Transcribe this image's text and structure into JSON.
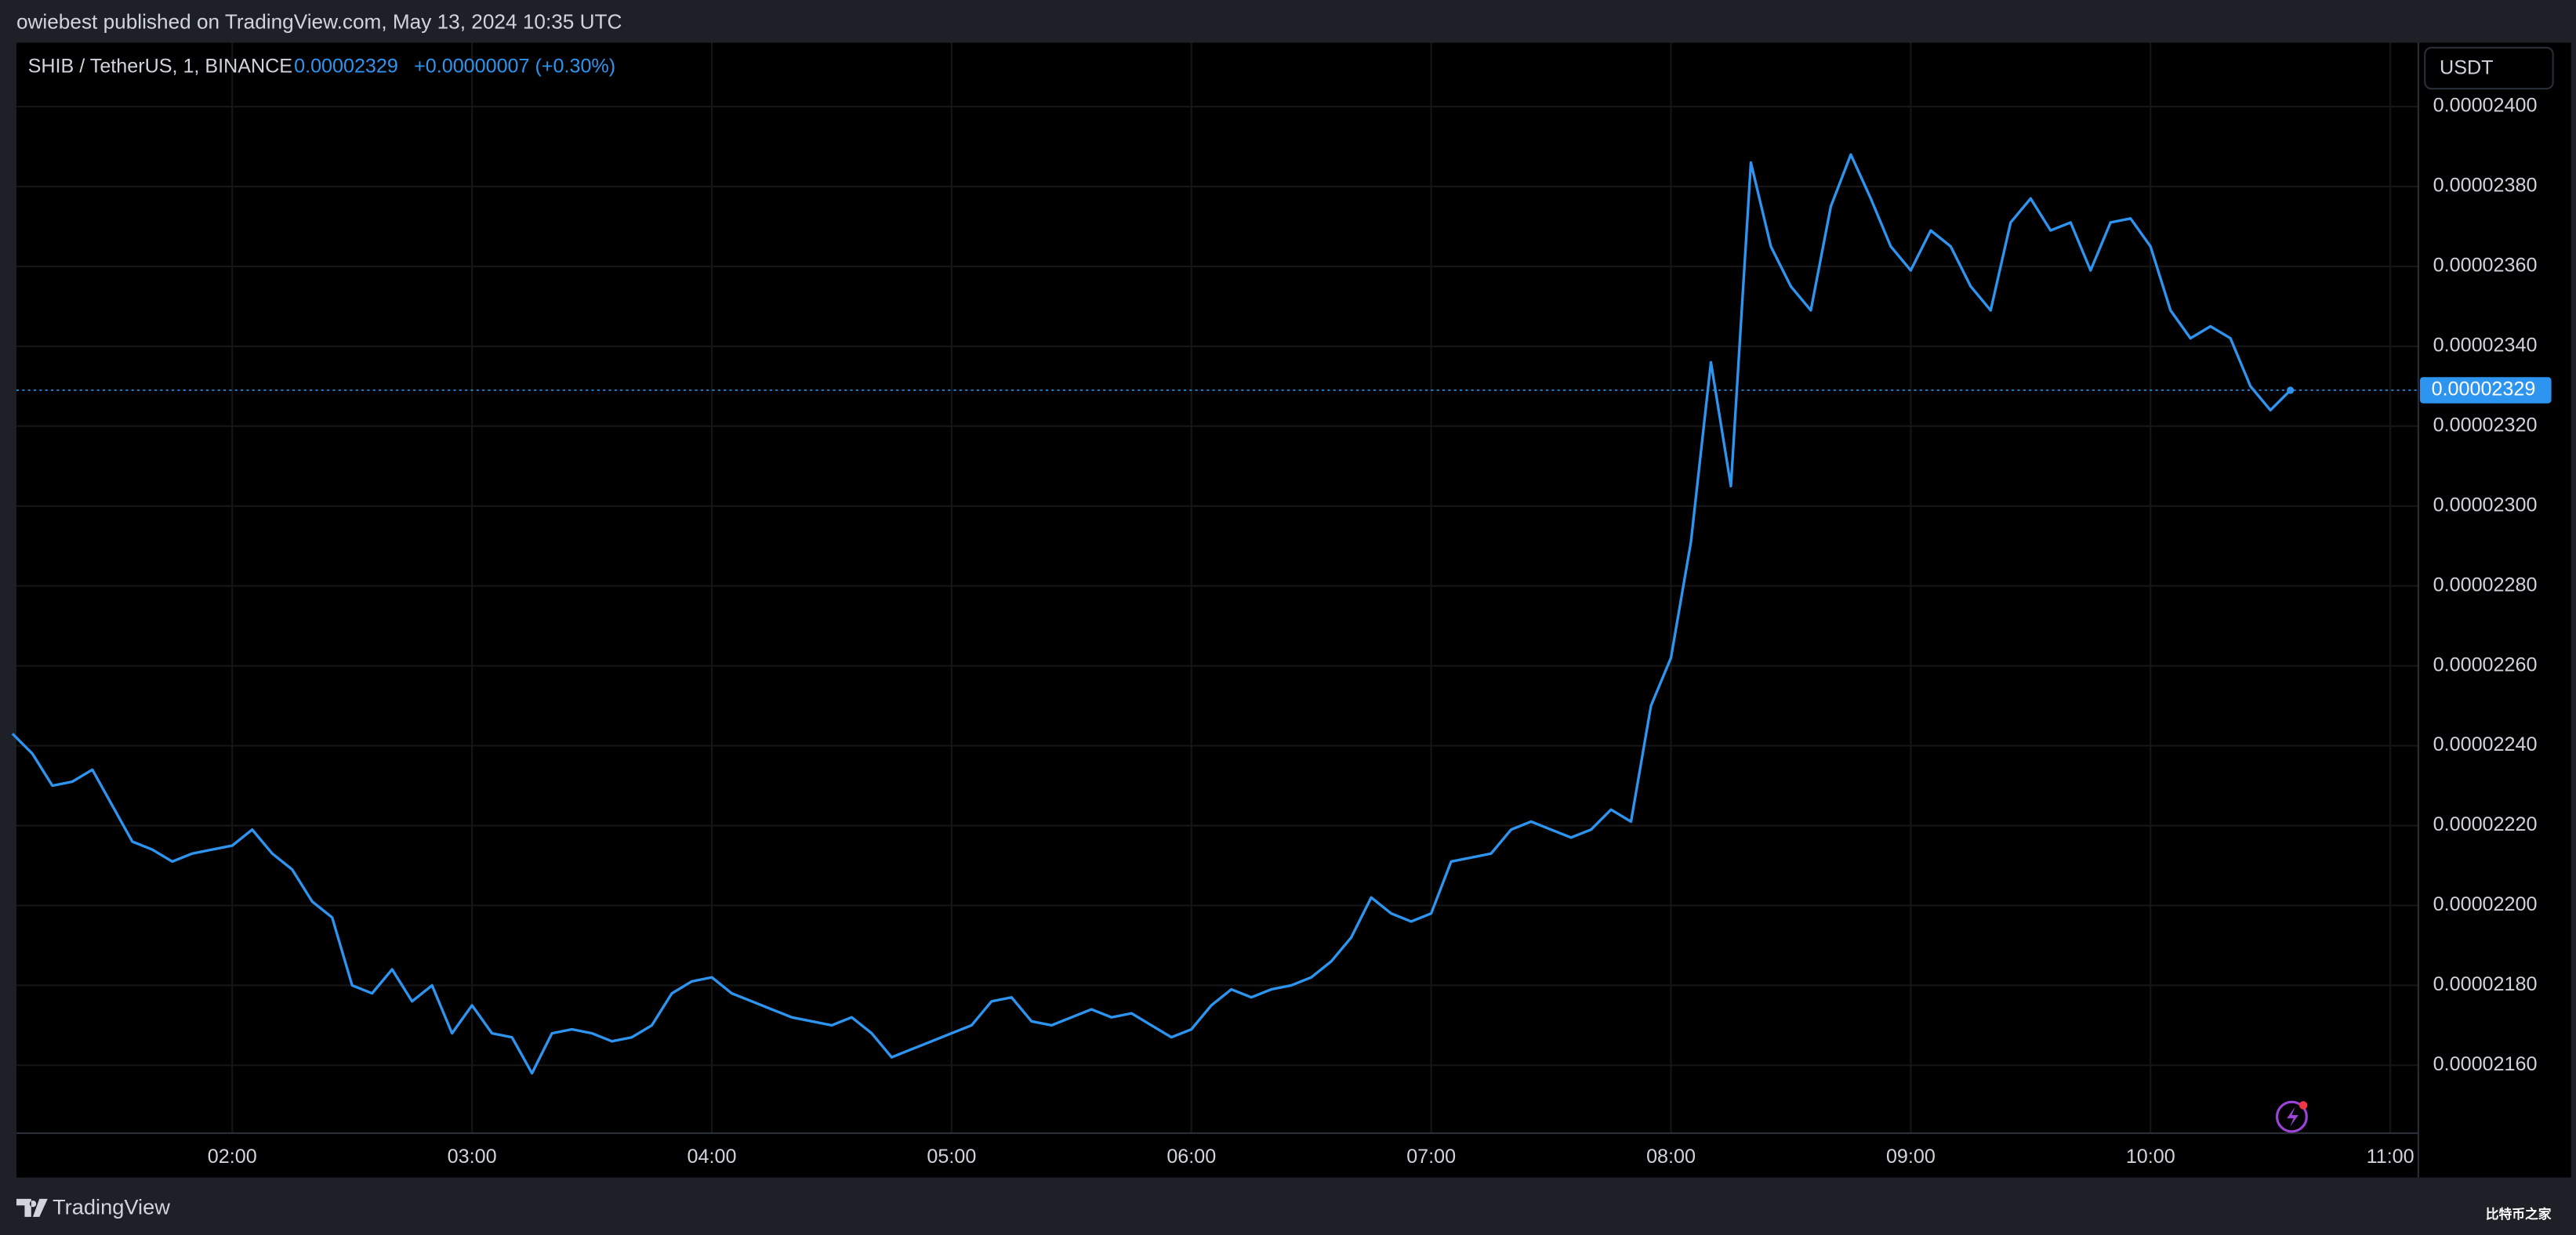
{
  "header": {
    "publisher": "owiebest published on TradingView.com, May 13, 2024 10:35 UTC"
  },
  "footer": {
    "brand": "TradingView",
    "watermark": "比特币之家"
  },
  "chart_data": {
    "type": "line",
    "symbol": "SHIB / TetherUS, 1, BINANCE",
    "last_price": 2.329e-05,
    "change": "+0.00000007 (+0.30%)",
    "currency": "USDT",
    "color": "#2d94f0",
    "x": [
      "01:05",
      "01:10",
      "01:15",
      "01:20",
      "01:25",
      "01:30",
      "01:35",
      "01:40",
      "01:45",
      "01:50",
      "01:55",
      "02:00",
      "02:05",
      "02:10",
      "02:15",
      "02:20",
      "02:25",
      "02:30",
      "02:35",
      "02:40",
      "02:45",
      "02:50",
      "02:55",
      "03:00",
      "03:05",
      "03:10",
      "03:15",
      "03:20",
      "03:25",
      "03:30",
      "03:35",
      "03:40",
      "03:45",
      "03:50",
      "03:55",
      "04:00",
      "04:05",
      "04:10",
      "04:15",
      "04:20",
      "04:25",
      "04:30",
      "04:35",
      "04:40",
      "04:45",
      "04:50",
      "04:55",
      "05:00",
      "05:05",
      "05:10",
      "05:15",
      "05:20",
      "05:25",
      "05:30",
      "05:35",
      "05:40",
      "05:45",
      "05:50",
      "05:55",
      "06:00",
      "06:05",
      "06:10",
      "06:15",
      "06:20",
      "06:25",
      "06:30",
      "06:35",
      "06:40",
      "06:45",
      "06:50",
      "06:55",
      "07:00",
      "07:05",
      "07:10",
      "07:15",
      "07:20",
      "07:25",
      "07:30",
      "07:35",
      "07:40",
      "07:45",
      "07:50",
      "07:55",
      "08:00",
      "08:05",
      "08:10",
      "08:15",
      "08:20",
      "08:25",
      "08:30",
      "08:35",
      "08:40",
      "08:45",
      "08:50",
      "08:55",
      "09:00",
      "09:05",
      "09:10",
      "09:15",
      "09:20",
      "09:25",
      "09:30",
      "09:35",
      "09:40",
      "09:45",
      "09:50",
      "09:55",
      "10:00",
      "10:05",
      "10:10",
      "10:15",
      "10:20",
      "10:25",
      "10:30",
      "10:35"
    ],
    "values": [
      2.243e-05,
      2.238e-05,
      2.23e-05,
      2.231e-05,
      2.234e-05,
      2.225e-05,
      2.216e-05,
      2.214e-05,
      2.211e-05,
      2.213e-05,
      2.214e-05,
      2.215e-05,
      2.219e-05,
      2.213e-05,
      2.209e-05,
      2.201e-05,
      2.197e-05,
      2.18e-05,
      2.178e-05,
      2.184e-05,
      2.176e-05,
      2.18e-05,
      2.168e-05,
      2.175e-05,
      2.168e-05,
      2.167e-05,
      2.158e-05,
      2.168e-05,
      2.169e-05,
      2.168e-05,
      2.166e-05,
      2.167e-05,
      2.17e-05,
      2.178e-05,
      2.181e-05,
      2.182e-05,
      2.178e-05,
      2.176e-05,
      2.174e-05,
      2.172e-05,
      2.171e-05,
      2.17e-05,
      2.172e-05,
      2.168e-05,
      2.162e-05,
      2.164e-05,
      2.166e-05,
      2.168e-05,
      2.17e-05,
      2.176e-05,
      2.177e-05,
      2.171e-05,
      2.17e-05,
      2.172e-05,
      2.174e-05,
      2.172e-05,
      2.173e-05,
      2.17e-05,
      2.167e-05,
      2.169e-05,
      2.175e-05,
      2.179e-05,
      2.177e-05,
      2.179e-05,
      2.18e-05,
      2.182e-05,
      2.186e-05,
      2.192e-05,
      2.202e-05,
      2.198e-05,
      2.196e-05,
      2.198e-05,
      2.211e-05,
      2.212e-05,
      2.213e-05,
      2.219e-05,
      2.221e-05,
      2.219e-05,
      2.217e-05,
      2.219e-05,
      2.224e-05,
      2.221e-05,
      2.25e-05,
      2.262e-05,
      2.291e-05,
      2.336e-05,
      2.305e-05,
      2.386e-05,
      2.365e-05,
      2.355e-05,
      2.349e-05,
      2.375e-05,
      2.388e-05,
      2.377e-05,
      2.365e-05,
      2.359e-05,
      2.369e-05,
      2.365e-05,
      2.355e-05,
      2.349e-05,
      2.371e-05,
      2.377e-05,
      2.369e-05,
      2.371e-05,
      2.359e-05,
      2.371e-05,
      2.372e-05,
      2.365e-05,
      2.349e-05,
      2.342e-05,
      2.345e-05,
      2.342e-05,
      2.33e-05,
      2.324e-05,
      2.329e-05
    ],
    "xlim": [
      "01:06",
      "11:07"
    ],
    "xticks": [
      "02:00",
      "03:00",
      "04:00",
      "05:00",
      "06:00",
      "07:00",
      "08:00",
      "09:00",
      "10:00",
      "11:00"
    ],
    "ylim": [
      2.143e-05,
      2.416e-05
    ],
    "yticks": [
      {
        "value": 2.16e-05,
        "label": "0.00002160"
      },
      {
        "value": 2.18e-05,
        "label": "0.00002180"
      },
      {
        "value": 2.2e-05,
        "label": "0.00002200"
      },
      {
        "value": 2.22e-05,
        "label": "0.00002220"
      },
      {
        "value": 2.24e-05,
        "label": "0.00002240"
      },
      {
        "value": 2.26e-05,
        "label": "0.00002260"
      },
      {
        "value": 2.28e-05,
        "label": "0.00002280"
      },
      {
        "value": 2.3e-05,
        "label": "0.00002300"
      },
      {
        "value": 2.32e-05,
        "label": "0.00002320"
      },
      {
        "value": 2.34e-05,
        "label": "0.00002340"
      },
      {
        "value": 2.36e-05,
        "label": "0.00002360"
      },
      {
        "value": 2.38e-05,
        "label": "0.00002380"
      },
      {
        "value": 2.4e-05,
        "label": "0.00002400"
      }
    ],
    "grid": true
  }
}
